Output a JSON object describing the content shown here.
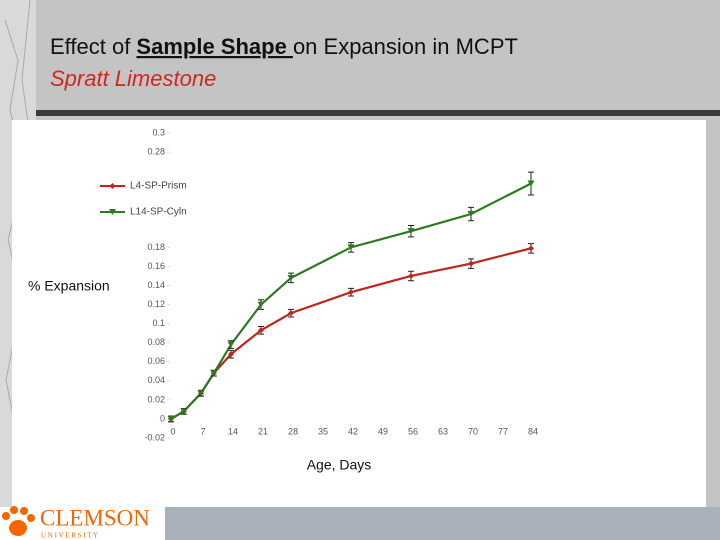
{
  "title_parts": [
    "Effect of ",
    "Sample Shape ",
    "on Expansion in MCPT"
  ],
  "subtitle": "Spratt Limestone",
  "logo": {
    "name": "CLEMSON",
    "sub": "U N I V E R S I T Y"
  },
  "chart_data": {
    "type": "line",
    "ylabel": "% Expansion",
    "xlabel": "Age, Days",
    "xlim": [
      0,
      84
    ],
    "xticks": [
      0,
      7,
      14,
      21,
      28,
      35,
      42,
      49,
      56,
      63,
      70,
      77,
      84
    ],
    "ylim": [
      -0.02,
      0.3
    ],
    "yticks": [
      0.3,
      0.28,
      0.18,
      0.16,
      0.14,
      0.12,
      0.1,
      0.08,
      0.06,
      0.04,
      0.02,
      0,
      -0.02
    ],
    "grid": false,
    "legend": "upper left",
    "x": [
      0,
      3,
      7,
      10,
      14,
      21,
      28,
      42,
      56,
      70,
      84
    ],
    "series": [
      {
        "name": "L4-SP-Prism",
        "color": "#c0271c",
        "marker": "diamond",
        "values": [
          0,
          0.008,
          0.027,
          0.048,
          0.068,
          0.093,
          0.111,
          0.133,
          0.15,
          0.163,
          0.179
        ],
        "errors": [
          0.003,
          0.003,
          0.003,
          0.003,
          0.004,
          0.004,
          0.004,
          0.004,
          0.005,
          0.005,
          0.005
        ]
      },
      {
        "name": "L14-SP-Cyln",
        "color": "#2e7a20",
        "marker": "triangle",
        "values": [
          0,
          0.008,
          0.027,
          0.048,
          0.078,
          0.12,
          0.148,
          0.18,
          0.197,
          0.215,
          0.247
        ],
        "errors": [
          0.003,
          0.003,
          0.003,
          0.003,
          0.004,
          0.005,
          0.005,
          0.005,
          0.006,
          0.007,
          0.012
        ]
      }
    ]
  }
}
